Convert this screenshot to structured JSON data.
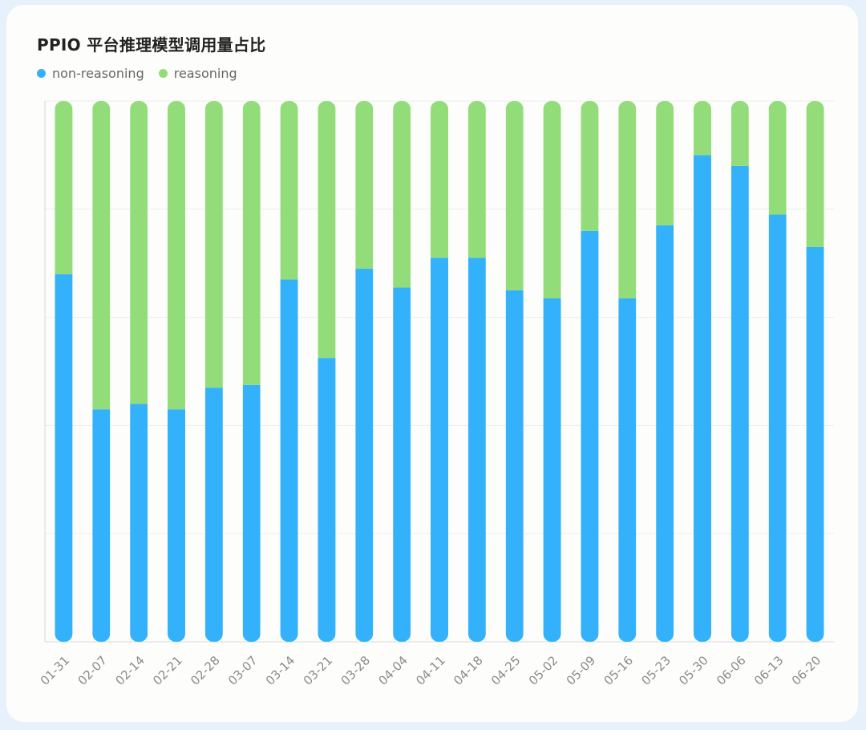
{
  "colors": {
    "non_reasoning": "#33b1fb",
    "reasoning": "#92dd7a",
    "grid": "#ececec",
    "axis": "#d7d7d7",
    "tick": "#8a8a8a"
  },
  "chart_data": {
    "type": "bar",
    "stacked": true,
    "percent": true,
    "title": "PPIO 平台推理模型调用量占比",
    "xlabel": "",
    "ylabel": "",
    "ylim": [
      0,
      100
    ],
    "grid": true,
    "legend": "top-left",
    "categories": [
      "01-31",
      "02-07",
      "02-14",
      "02-21",
      "02-28",
      "03-07",
      "03-14",
      "03-21",
      "03-28",
      "04-04",
      "04-11",
      "04-18",
      "04-25",
      "05-02",
      "05-09",
      "05-16",
      "05-23",
      "05-30",
      "06-06",
      "06-13",
      "06-20"
    ],
    "series": [
      {
        "name": "non-reasoning",
        "values": [
          68,
          43,
          44,
          43,
          47,
          47.5,
          67,
          52.5,
          69,
          65.5,
          71,
          71,
          65,
          63.5,
          76,
          63.5,
          77,
          90,
          88,
          79,
          73
        ]
      },
      {
        "name": "reasoning",
        "values": [
          32,
          57,
          56,
          57,
          53,
          52.5,
          33,
          47.5,
          31,
          34.5,
          29,
          29,
          35,
          36.5,
          24,
          36.5,
          23,
          10,
          12,
          21,
          27
        ]
      }
    ]
  }
}
